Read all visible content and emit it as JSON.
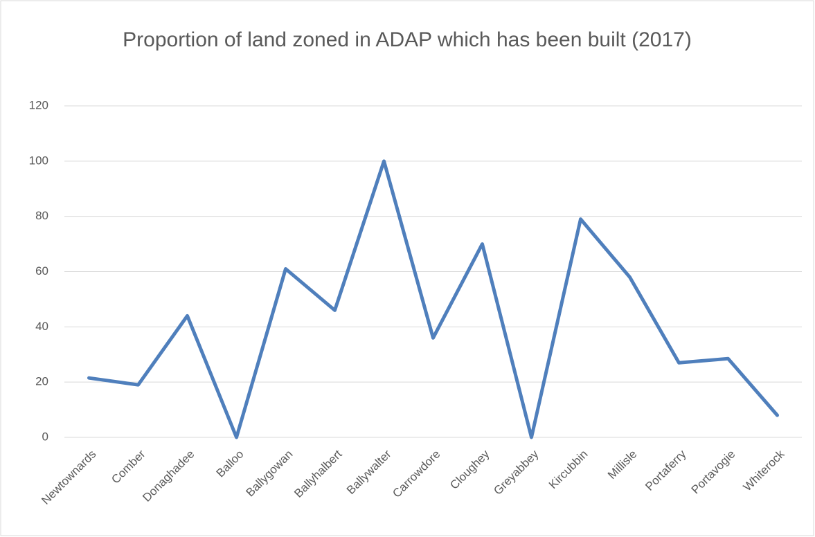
{
  "chart_data": {
    "type": "line",
    "title": "Proportion of land zoned in ADAP which has been built (2017)",
    "categories": [
      "Newtownards",
      "Comber",
      "Donaghadee",
      "Balloo",
      "Ballygowan",
      "Ballyhalbert",
      "Ballywalter",
      "Carrowdore",
      "Cloughey",
      "Greyabbey",
      "Kircubbin",
      "Millisle",
      "Portaferry",
      "Portavogie",
      "Whiterock"
    ],
    "values": [
      21.5,
      19,
      44,
      0,
      61,
      46,
      100,
      36,
      70,
      0,
      79,
      58,
      27,
      28.5,
      8
    ],
    "color": "#4f7fbc",
    "ylim": [
      0,
      120
    ],
    "yticks": [
      0,
      20,
      40,
      60,
      80,
      100,
      120
    ],
    "grid": true
  }
}
